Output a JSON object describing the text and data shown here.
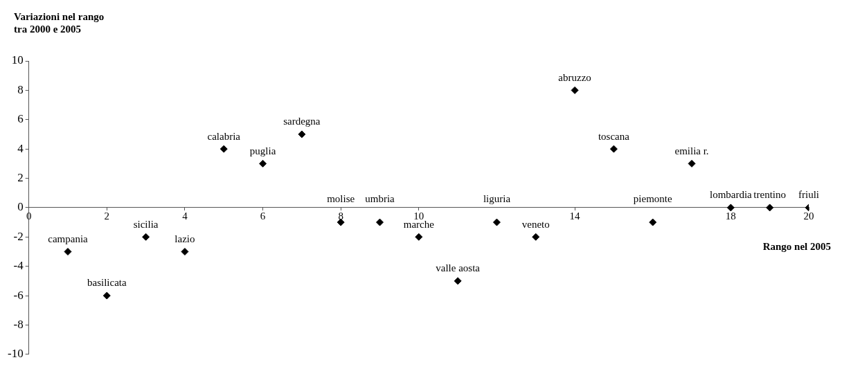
{
  "chart_data": {
    "type": "scatter",
    "ylabel": "Variazioni nel rango\ntra 2000 e 2005",
    "xlabel": "Rango nel 2005",
    "x": [
      1,
      2,
      3,
      4,
      5,
      6,
      7,
      8,
      9,
      10,
      11,
      12,
      13,
      14,
      15,
      16,
      17,
      18,
      19,
      20
    ],
    "series": [
      {
        "color": "#000000",
        "values": [
          -3,
          -6,
          -2,
          -3,
          4,
          3,
          5,
          -1,
          -1,
          -2,
          -5,
          -1,
          -2,
          8,
          4,
          -1,
          3,
          0,
          0,
          0
        ]
      }
    ],
    "marker": "diamond",
    "grid": false,
    "legend": false,
    "xlim": [
      0,
      20
    ],
    "xticks": [
      0,
      2,
      4,
      6,
      8,
      10,
      14,
      18,
      20
    ],
    "ylim": [
      -10,
      10
    ],
    "yticks": [
      -10,
      -8,
      -6,
      -4,
      -2,
      0,
      2,
      4,
      6,
      8,
      10
    ],
    "annotations": [
      {
        "text": "campania",
        "x": 1,
        "y": -3
      },
      {
        "text": "basilicata",
        "x": 2,
        "y": -6
      },
      {
        "text": "sicilia",
        "x": 3,
        "y": -2
      },
      {
        "text": "lazio",
        "x": 4,
        "y": -3
      },
      {
        "text": "calabria",
        "x": 5,
        "y": 4
      },
      {
        "text": "puglia",
        "x": 6,
        "y": 3
      },
      {
        "text": "sardegna",
        "x": 7,
        "y": 5
      },
      {
        "text": "molise",
        "x": 8,
        "y": -1
      },
      {
        "text": "umbria",
        "x": 9,
        "y": -1
      },
      {
        "text": "marche",
        "x": 10,
        "y": -2
      },
      {
        "text": "valle aosta",
        "x": 11,
        "y": -5
      },
      {
        "text": "liguria",
        "x": 12,
        "y": -1
      },
      {
        "text": "veneto",
        "x": 13,
        "y": -2
      },
      {
        "text": "abruzzo",
        "x": 14,
        "y": 8
      },
      {
        "text": "toscana",
        "x": 15,
        "y": 4
      },
      {
        "text": "piemonte",
        "x": 16,
        "y": -1
      },
      {
        "text": "emilia r.",
        "x": 17,
        "y": 3
      },
      {
        "text": "lombardia",
        "x": 18,
        "y": 0
      },
      {
        "text": "trentino",
        "x": 19,
        "y": 0
      },
      {
        "text": "friuli",
        "x": 20,
        "y": 0
      }
    ]
  }
}
